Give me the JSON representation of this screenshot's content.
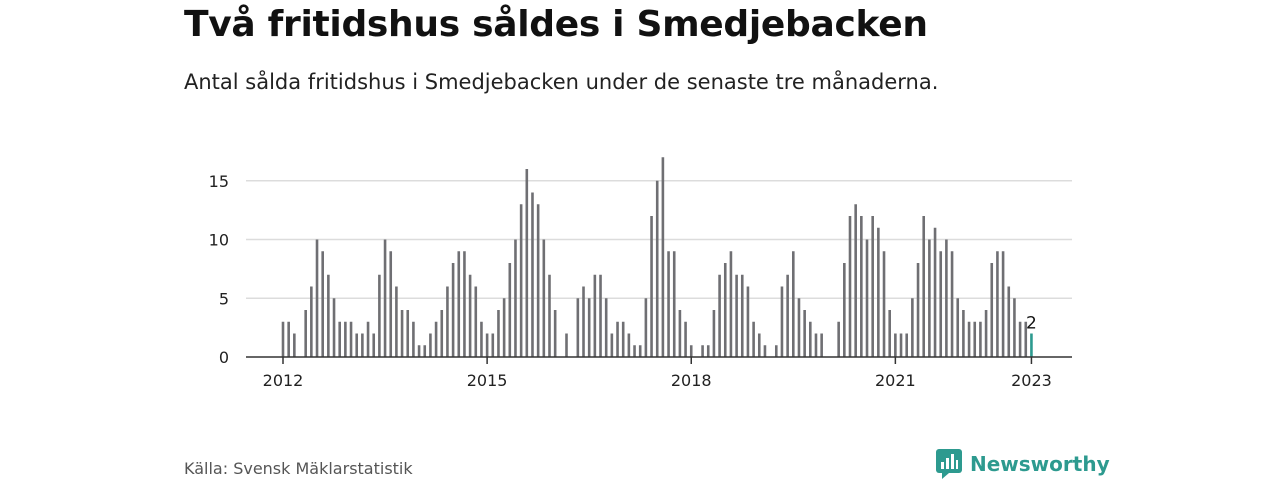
{
  "title": "Två fritidshus såldes i Smedjebacken",
  "subtitle": "Antal sålda fritidshus i Smedjebacken under de senaste tre månaderna.",
  "source": "Källa: Svensk Mäklarstatistik",
  "brand": {
    "name": "Newsworthy",
    "icon": "newsworthy-logo-icon",
    "color": "#2d9a8f"
  },
  "chart_data": {
    "type": "bar",
    "start": "2012-01",
    "values": [
      3,
      3,
      2,
      0,
      4,
      6,
      10,
      9,
      7,
      5,
      3,
      3,
      3,
      2,
      2,
      3,
      2,
      7,
      10,
      9,
      6,
      4,
      4,
      3,
      1,
      1,
      2,
      3,
      4,
      6,
      8,
      9,
      9,
      7,
      6,
      3,
      2,
      2,
      4,
      5,
      8,
      10,
      13,
      16,
      14,
      13,
      10,
      7,
      4,
      0,
      2,
      0,
      5,
      6,
      5,
      7,
      7,
      5,
      2,
      3,
      3,
      2,
      1,
      1,
      5,
      12,
      15,
      17,
      9,
      9,
      4,
      3,
      1,
      0,
      1,
      1,
      4,
      7,
      8,
      9,
      7,
      7,
      6,
      3,
      2,
      1,
      0,
      1,
      6,
      7,
      9,
      5,
      4,
      3,
      2,
      2,
      0,
      0,
      3,
      8,
      12,
      13,
      12,
      10,
      12,
      11,
      9,
      4,
      2,
      2,
      2,
      5,
      8,
      12,
      10,
      11,
      9,
      10,
      9,
      5,
      4,
      3,
      3,
      3,
      4,
      8,
      9,
      9,
      6,
      5,
      3,
      3,
      2
    ],
    "highlight_index": 132,
    "highlight_label": "2",
    "x_ticks": [
      {
        "label": "2012",
        "index": 0
      },
      {
        "label": "2015",
        "index": 36
      },
      {
        "label": "2018",
        "index": 72
      },
      {
        "label": "2021",
        "index": 108
      },
      {
        "label": "2023",
        "index": 132
      }
    ],
    "y_ticks": [
      0,
      5,
      10,
      15
    ],
    "ylim": [
      0,
      17
    ],
    "grid": true,
    "colors": {
      "bar": "#6f6f73",
      "highlight": "#2d9a8f",
      "grid": "#dcdcdc",
      "axis": "#333333"
    }
  }
}
